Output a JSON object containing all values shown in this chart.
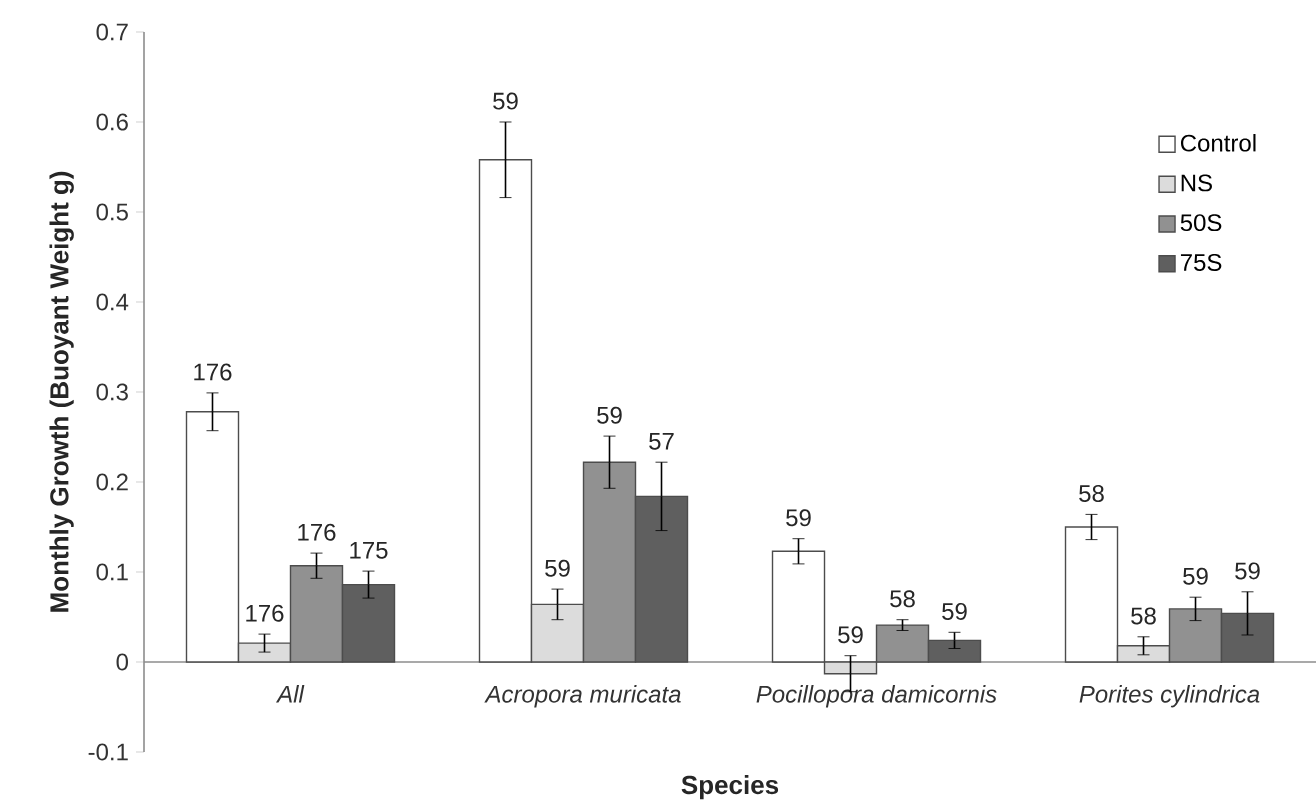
{
  "chart_data": {
    "type": "bar",
    "xlabel": "Species",
    "ylabel": "Monthly Growth (Buoyant Weight g)",
    "categories": [
      "All",
      "Acropora muricata",
      "Pocillopora damicornis",
      "Porites cylindrica"
    ],
    "series": [
      {
        "name": "Control",
        "color": "#ffffff",
        "values": [
          0.278,
          0.558,
          0.123,
          0.15
        ],
        "errors": [
          0.021,
          0.042,
          0.014,
          0.014
        ]
      },
      {
        "name": "NS",
        "color": "#dcdcdc",
        "values": [
          0.021,
          0.064,
          -0.013,
          0.018
        ],
        "errors": [
          0.01,
          0.017,
          0.02,
          0.01
        ]
      },
      {
        "name": "50S",
        "color": "#919191",
        "values": [
          0.107,
          0.222,
          0.041,
          0.059
        ],
        "errors": [
          0.014,
          0.029,
          0.006,
          0.013
        ]
      },
      {
        "name": "75S",
        "color": "#5f5f5f",
        "values": [
          0.086,
          0.184,
          0.024,
          0.054
        ],
        "errors": [
          0.015,
          0.038,
          0.009,
          0.024
        ]
      }
    ],
    "annotations": [
      "176",
      "176",
      "176",
      "175",
      "59",
      "59",
      "59",
      "57",
      "59",
      "59",
      "58",
      "59",
      "58",
      "58",
      "59",
      "59"
    ],
    "ylim": [
      -0.1,
      0.7
    ],
    "yticks": [
      -0.1,
      0,
      0.1,
      0.2,
      0.3,
      0.4,
      0.5,
      0.6,
      0.7
    ],
    "legend": "top right",
    "grid": false
  }
}
